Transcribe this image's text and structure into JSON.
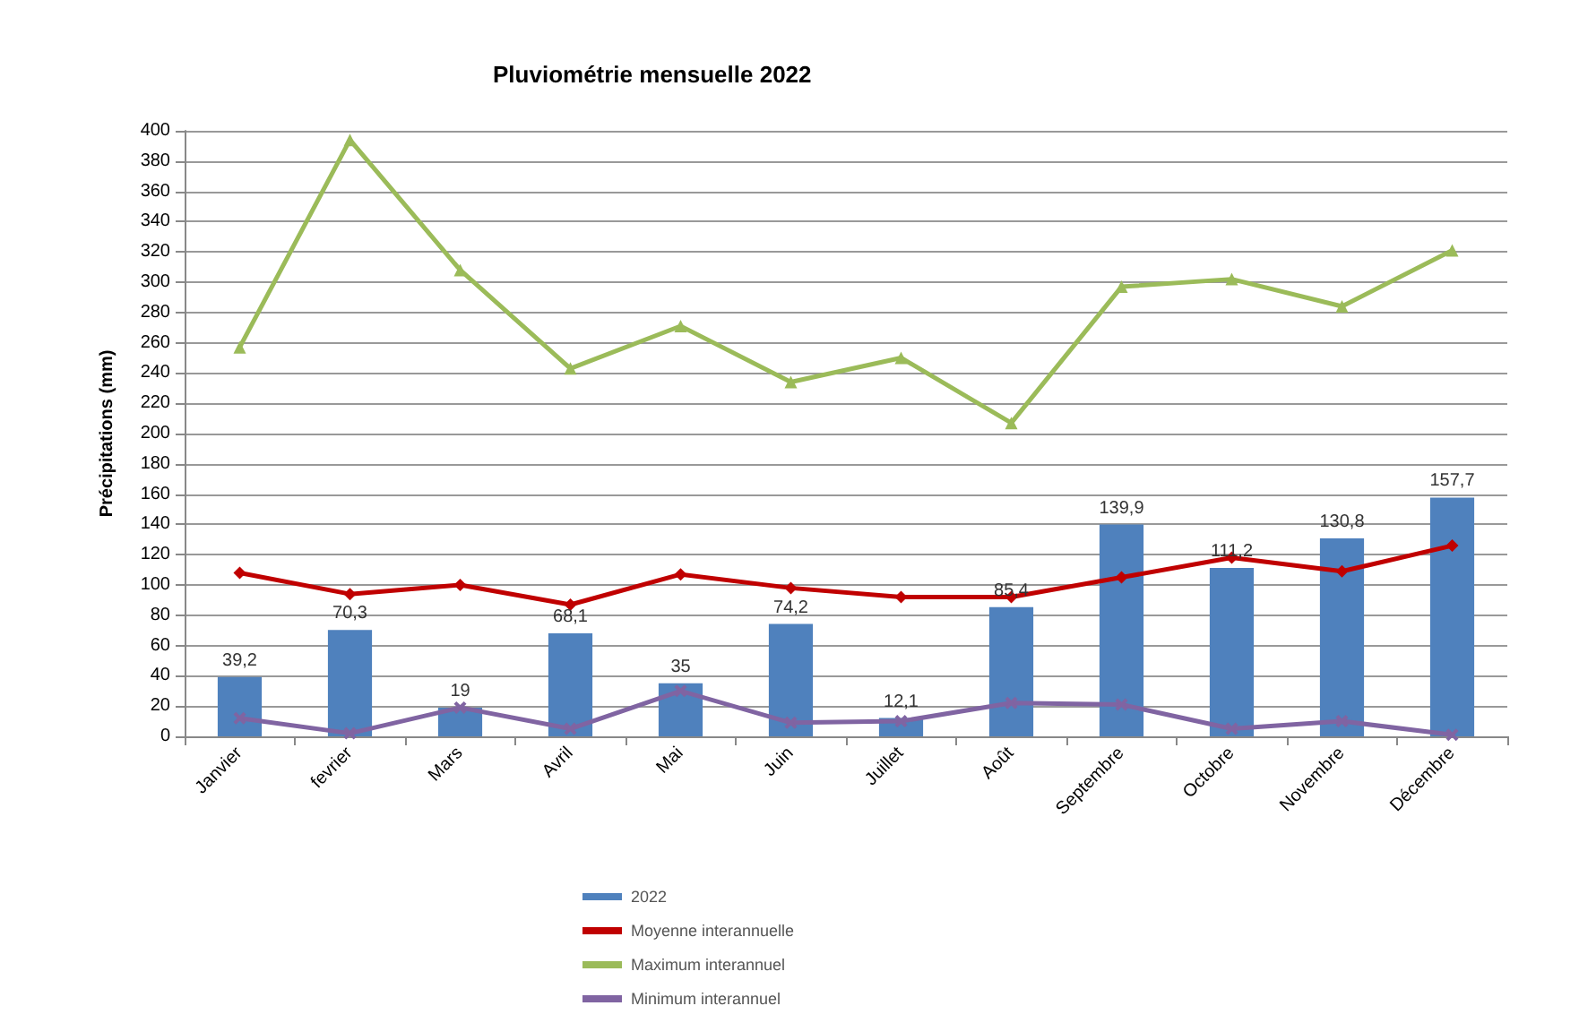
{
  "chart_data": {
    "type": "bar",
    "title": "Pluviométrie mensuelle 2022",
    "ylabel": "Précipitations (mm)",
    "categories": [
      "Janvier",
      "fevrier",
      "Mars",
      "Avril",
      "Mai",
      "Juin",
      "Juillet",
      "Août",
      "Septembre",
      "Octobre",
      "Novembre",
      "Décembre"
    ],
    "series": [
      {
        "name": "2022",
        "type": "bar",
        "color": "#4f81bd",
        "values": [
          39.2,
          70.3,
          19,
          68.1,
          35,
          74.2,
          12.1,
          85.4,
          139.9,
          111.2,
          130.8,
          157.7
        ],
        "value_labels": [
          "39,2",
          "70,3",
          "19",
          "68,1",
          "35",
          "74,2",
          "12,1",
          "85,4",
          "139,9",
          "111,2",
          "130,8",
          "157,7"
        ]
      },
      {
        "name": "Moyenne interannuelle",
        "type": "line",
        "marker": "diamond",
        "color": "#c00000",
        "values": [
          108,
          94,
          100,
          87,
          107,
          98,
          92,
          92,
          105,
          118,
          109,
          126
        ]
      },
      {
        "name": "Maximum interannuel",
        "type": "line",
        "marker": "triangle",
        "color": "#9bbb59",
        "values": [
          257,
          394,
          308,
          243,
          271,
          234,
          250,
          207,
          297,
          302,
          284,
          321
        ]
      },
      {
        "name": "Minimum interannuel",
        "type": "line",
        "marker": "cross",
        "color": "#8064a2",
        "values": [
          12,
          2,
          19,
          5,
          30,
          9,
          10,
          22,
          21,
          5,
          10,
          1
        ]
      }
    ],
    "ylim": [
      0,
      400
    ],
    "yticks": [
      0,
      20,
      40,
      60,
      80,
      100,
      120,
      140,
      160,
      180,
      200,
      220,
      240,
      260,
      280,
      300,
      320,
      340,
      360,
      380,
      400
    ],
    "grid": "y",
    "legend": "bottom",
    "line_style": "solid"
  }
}
